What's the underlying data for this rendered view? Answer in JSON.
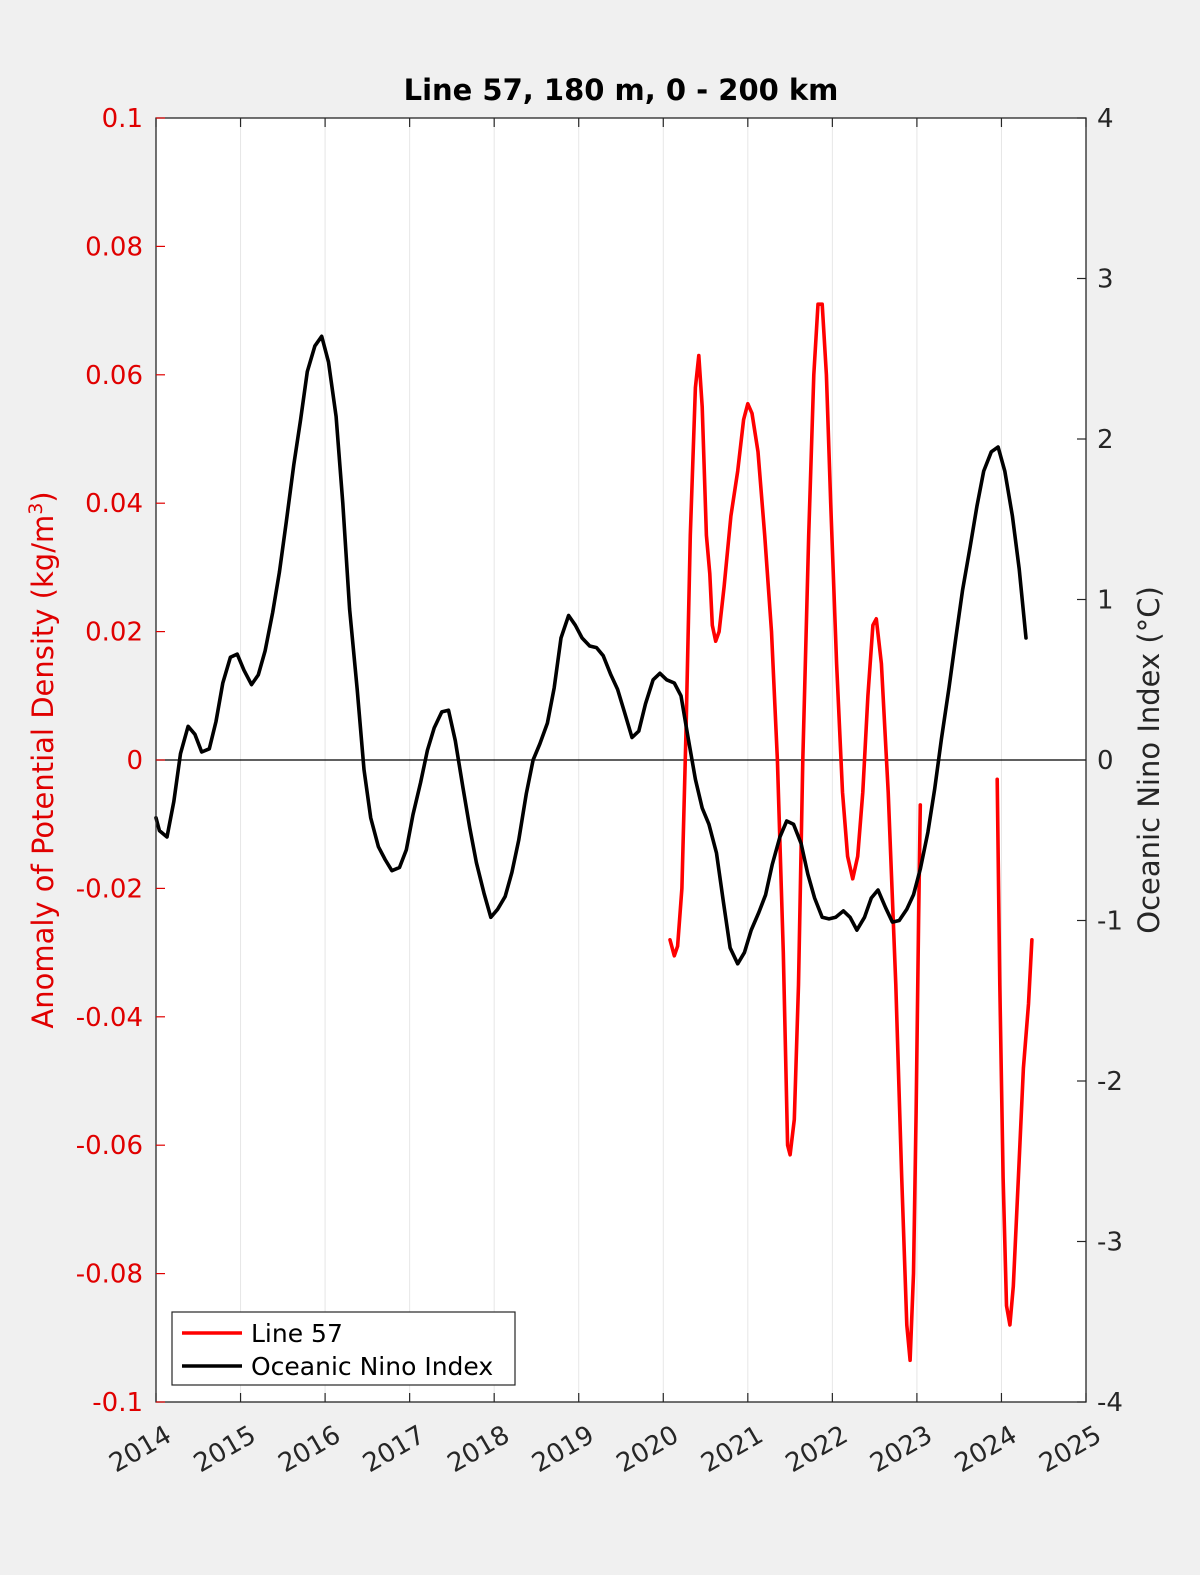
{
  "chart_data": {
    "type": "line",
    "title": "Line 57, 180 m, 0 - 200 km",
    "ylabel_left": "Anomaly of Potential Density (kg/m",
    "ylabel_left_sup": "3",
    "ylabel_left_end": ")",
    "ylabel_right": "Oceanic Nino Index (°C)",
    "xlim": [
      2014,
      2025
    ],
    "ylim_left": [
      -0.1,
      0.1
    ],
    "ylim_right": [
      -4,
      4
    ],
    "x_ticks": [
      "2014",
      "2015",
      "2016",
      "2017",
      "2018",
      "2019",
      "2020",
      "2021",
      "2022",
      "2023",
      "2024",
      "2025"
    ],
    "y_left_ticks": [
      "-0.1",
      "-0.08",
      "-0.06",
      "-0.04",
      "-0.02",
      "0",
      "0.02",
      "0.04",
      "0.06",
      "0.08",
      "0.1"
    ],
    "y_right_ticks": [
      "-4",
      "-3",
      "-2",
      "-1",
      "0",
      "1",
      "2",
      "3",
      "4"
    ],
    "grid": "vertical",
    "zero_line": true,
    "colors": {
      "left_axis": "#e00000",
      "line57": "#ff0000",
      "oni": "#000000"
    },
    "legend": {
      "location": "bottom-left",
      "entries": [
        "Line 57",
        "Oceanic Nino Index"
      ]
    },
    "series": [
      {
        "name": "Line 57",
        "axis": "left",
        "segments": [
          [
            [
              2020.08,
              -0.028
            ],
            [
              2020.13,
              -0.0305
            ],
            [
              2020.17,
              -0.029
            ],
            [
              2020.22,
              -0.02
            ],
            [
              2020.27,
              0.005
            ],
            [
              2020.32,
              0.035
            ],
            [
              2020.38,
              0.058
            ],
            [
              2020.42,
              0.063
            ],
            [
              2020.46,
              0.055
            ],
            [
              2020.51,
              0.035
            ],
            [
              2020.55,
              0.029
            ],
            [
              2020.58,
              0.021
            ],
            [
              2020.62,
              0.0185
            ],
            [
              2020.66,
              0.02
            ],
            [
              2020.72,
              0.027
            ],
            [
              2020.8,
              0.038
            ],
            [
              2020.88,
              0.045
            ],
            [
              2020.95,
              0.053
            ],
            [
              2021.0,
              0.0555
            ],
            [
              2021.05,
              0.054
            ],
            [
              2021.12,
              0.048
            ],
            [
              2021.2,
              0.035
            ],
            [
              2021.28,
              0.02
            ],
            [
              2021.35,
              0.0
            ],
            [
              2021.42,
              -0.03
            ],
            [
              2021.47,
              -0.06
            ],
            [
              2021.5,
              -0.0615
            ],
            [
              2021.55,
              -0.056
            ],
            [
              2021.6,
              -0.035
            ],
            [
              2021.65,
              0.0
            ],
            [
              2021.72,
              0.035
            ],
            [
              2021.78,
              0.06
            ],
            [
              2021.83,
              0.071
            ],
            [
              2021.88,
              0.071
            ],
            [
              2021.93,
              0.06
            ],
            [
              2021.98,
              0.04
            ],
            [
              2022.05,
              0.015
            ],
            [
              2022.12,
              -0.005
            ],
            [
              2022.18,
              -0.015
            ],
            [
              2022.24,
              -0.0185
            ],
            [
              2022.3,
              -0.015
            ],
            [
              2022.36,
              -0.005
            ],
            [
              2022.42,
              0.01
            ],
            [
              2022.48,
              0.021
            ],
            [
              2022.52,
              0.022
            ],
            [
              2022.58,
              0.015
            ],
            [
              2022.66,
              -0.005
            ],
            [
              2022.75,
              -0.035
            ],
            [
              2022.82,
              -0.065
            ],
            [
              2022.88,
              -0.088
            ],
            [
              2022.92,
              -0.0935
            ],
            [
              2022.96,
              -0.08
            ],
            [
              2022.99,
              -0.055
            ],
            [
              2023.02,
              -0.025
            ],
            [
              2023.04,
              -0.007
            ]
          ],
          [
            [
              2023.95,
              -0.003
            ],
            [
              2023.98,
              -0.035
            ],
            [
              2024.02,
              -0.065
            ],
            [
              2024.06,
              -0.085
            ],
            [
              2024.1,
              -0.088
            ],
            [
              2024.14,
              -0.082
            ],
            [
              2024.2,
              -0.065
            ],
            [
              2024.26,
              -0.048
            ],
            [
              2024.32,
              -0.038
            ],
            [
              2024.36,
              -0.028
            ]
          ]
        ]
      },
      {
        "name": "Oceanic Nino Index",
        "axis": "right",
        "segments": [
          [
            [
              2014.0,
              -0.36
            ],
            [
              2014.04,
              -0.44
            ],
            [
              2014.13,
              -0.48
            ],
            [
              2014.21,
              -0.26
            ],
            [
              2014.29,
              0.04
            ],
            [
              2014.38,
              0.21
            ],
            [
              2014.46,
              0.16
            ],
            [
              2014.54,
              0.05
            ],
            [
              2014.63,
              0.07
            ],
            [
              2014.71,
              0.24
            ],
            [
              2014.79,
              0.48
            ],
            [
              2014.88,
              0.64
            ],
            [
              2014.96,
              0.66
            ],
            [
              2015.04,
              0.56
            ],
            [
              2015.13,
              0.47
            ],
            [
              2015.21,
              0.53
            ],
            [
              2015.29,
              0.68
            ],
            [
              2015.38,
              0.92
            ],
            [
              2015.46,
              1.17
            ],
            [
              2015.54,
              1.48
            ],
            [
              2015.63,
              1.84
            ],
            [
              2015.71,
              2.12
            ],
            [
              2015.79,
              2.42
            ],
            [
              2015.88,
              2.58
            ],
            [
              2015.96,
              2.64
            ],
            [
              2016.04,
              2.48
            ],
            [
              2016.13,
              2.14
            ],
            [
              2016.21,
              1.6
            ],
            [
              2016.29,
              0.94
            ],
            [
              2016.38,
              0.44
            ],
            [
              2016.46,
              -0.06
            ],
            [
              2016.54,
              -0.36
            ],
            [
              2016.63,
              -0.54
            ],
            [
              2016.71,
              -0.62
            ],
            [
              2016.79,
              -0.69
            ],
            [
              2016.88,
              -0.67
            ],
            [
              2016.96,
              -0.56
            ],
            [
              2017.04,
              -0.34
            ],
            [
              2017.13,
              -0.14
            ],
            [
              2017.21,
              0.06
            ],
            [
              2017.29,
              0.2
            ],
            [
              2017.38,
              0.3
            ],
            [
              2017.46,
              0.31
            ],
            [
              2017.54,
              0.12
            ],
            [
              2017.63,
              -0.17
            ],
            [
              2017.71,
              -0.42
            ],
            [
              2017.79,
              -0.64
            ],
            [
              2017.88,
              -0.83
            ],
            [
              2017.96,
              -0.98
            ],
            [
              2018.04,
              -0.93
            ],
            [
              2018.13,
              -0.85
            ],
            [
              2018.21,
              -0.7
            ],
            [
              2018.29,
              -0.5
            ],
            [
              2018.38,
              -0.21
            ],
            [
              2018.46,
              0.0
            ],
            [
              2018.54,
              0.1
            ],
            [
              2018.63,
              0.23
            ],
            [
              2018.71,
              0.45
            ],
            [
              2018.79,
              0.76
            ],
            [
              2018.88,
              0.9
            ],
            [
              2018.96,
              0.84
            ],
            [
              2019.04,
              0.76
            ],
            [
              2019.13,
              0.71
            ],
            [
              2019.21,
              0.7
            ],
            [
              2019.29,
              0.65
            ],
            [
              2019.38,
              0.53
            ],
            [
              2019.46,
              0.44
            ],
            [
              2019.54,
              0.3
            ],
            [
              2019.63,
              0.14
            ],
            [
              2019.71,
              0.18
            ],
            [
              2019.79,
              0.35
            ],
            [
              2019.88,
              0.5
            ],
            [
              2019.96,
              0.54
            ],
            [
              2020.04,
              0.5
            ],
            [
              2020.13,
              0.48
            ],
            [
              2020.21,
              0.4
            ],
            [
              2020.29,
              0.15
            ],
            [
              2020.38,
              -0.12
            ],
            [
              2020.46,
              -0.3
            ],
            [
              2020.54,
              -0.4
            ],
            [
              2020.63,
              -0.58
            ],
            [
              2020.71,
              -0.88
            ],
            [
              2020.79,
              -1.17
            ],
            [
              2020.88,
              -1.27
            ],
            [
              2020.96,
              -1.2
            ],
            [
              2021.04,
              -1.06
            ],
            [
              2021.13,
              -0.95
            ],
            [
              2021.21,
              -0.84
            ],
            [
              2021.29,
              -0.65
            ],
            [
              2021.38,
              -0.48
            ],
            [
              2021.46,
              -0.38
            ],
            [
              2021.54,
              -0.4
            ],
            [
              2021.63,
              -0.52
            ],
            [
              2021.71,
              -0.71
            ],
            [
              2021.79,
              -0.86
            ],
            [
              2021.88,
              -0.98
            ],
            [
              2021.96,
              -0.99
            ],
            [
              2022.04,
              -0.98
            ],
            [
              2022.13,
              -0.94
            ],
            [
              2022.21,
              -0.98
            ],
            [
              2022.29,
              -1.06
            ],
            [
              2022.38,
              -0.98
            ],
            [
              2022.46,
              -0.86
            ],
            [
              2022.54,
              -0.81
            ],
            [
              2022.63,
              -0.92
            ],
            [
              2022.71,
              -1.01
            ],
            [
              2022.79,
              -1.0
            ],
            [
              2022.88,
              -0.93
            ],
            [
              2022.96,
              -0.84
            ],
            [
              2023.04,
              -0.68
            ],
            [
              2023.13,
              -0.45
            ],
            [
              2023.21,
              -0.18
            ],
            [
              2023.29,
              0.13
            ],
            [
              2023.38,
              0.45
            ],
            [
              2023.46,
              0.76
            ],
            [
              2023.54,
              1.06
            ],
            [
              2023.63,
              1.33
            ],
            [
              2023.71,
              1.58
            ],
            [
              2023.79,
              1.8
            ],
            [
              2023.88,
              1.92
            ],
            [
              2023.96,
              1.95
            ],
            [
              2024.04,
              1.8
            ],
            [
              2024.13,
              1.52
            ],
            [
              2024.21,
              1.19
            ],
            [
              2024.29,
              0.76
            ]
          ]
        ]
      }
    ]
  }
}
